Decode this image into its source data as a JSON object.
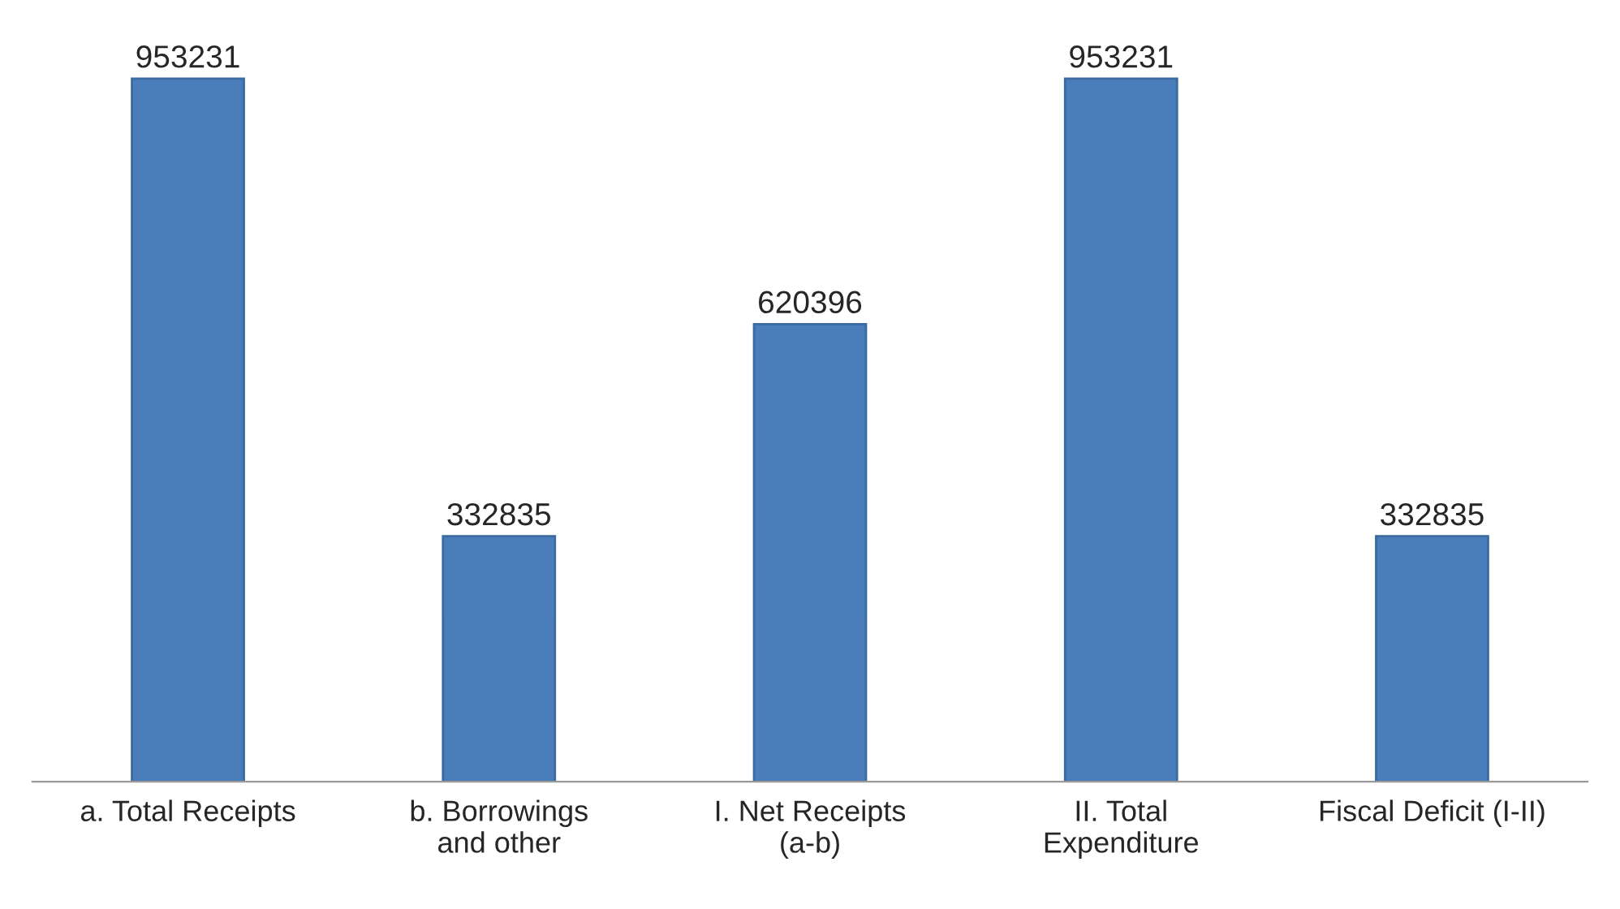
{
  "chart_data": {
    "type": "bar",
    "categories": [
      "a. Total Receipts",
      "b. Borrowings\nand other",
      "I. Net Receipts\n(a-b)",
      "II. Total\nExpenditure",
      "Fiscal Deficit (I-II)"
    ],
    "values": [
      953231,
      332835,
      620396,
      953231,
      332835
    ],
    "color": "#4a7ebb",
    "data_labels": true
  }
}
